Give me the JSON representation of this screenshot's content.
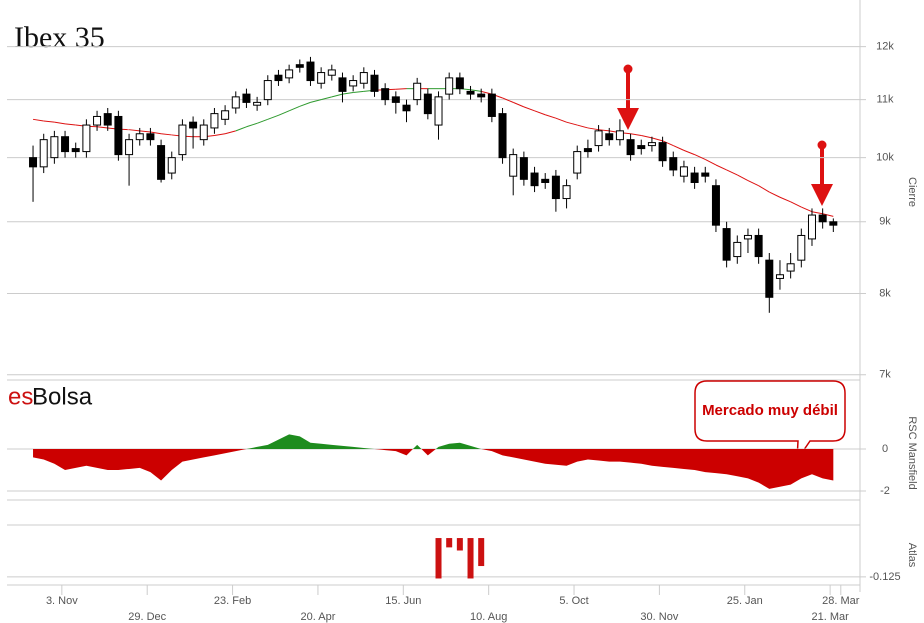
{
  "chart_data": {
    "type": "candlestick",
    "title": "Ibex 35",
    "logo": [
      "es",
      "Bolsa"
    ],
    "logo_colors": [
      "#cc1111",
      "#111111"
    ],
    "annotation": "Mercado muy débil",
    "annotation_color": "#cc0000",
    "y_label": "Cierre",
    "log_y": true,
    "xlim": [
      -2.44,
      77.5
    ],
    "xticks": [
      {
        "value": 2.7,
        "label": "3. Nov"
      },
      {
        "value": 10.7,
        "label": "29. Dec"
      },
      {
        "value": 18.7,
        "label": "23. Feb"
      },
      {
        "value": 26.7,
        "label": "20. Apr"
      },
      {
        "value": 34.7,
        "label": "15. Jun"
      },
      {
        "value": 42.7,
        "label": "10. Aug"
      },
      {
        "value": 50.7,
        "label": "5. Oct"
      },
      {
        "value": 58.7,
        "label": "30. Nov"
      },
      {
        "value": 66.7,
        "label": "25. Jan"
      },
      {
        "value": 74.7,
        "label": "21. Mar"
      },
      {
        "value": 75.7,
        "label": "28. Mar"
      }
    ],
    "ylim": [
      6940,
      12850
    ],
    "yticks": [
      {
        "value": 7000,
        "label": "7k"
      },
      {
        "value": 8000,
        "label": "8k"
      },
      {
        "value": 9000,
        "label": "9k"
      },
      {
        "value": 10000,
        "label": "10k"
      },
      {
        "value": 11000,
        "label": "11k"
      },
      {
        "value": 12000,
        "label": "12k"
      }
    ],
    "grid": true,
    "up_color": "#ffffff",
    "down_color": "#000000",
    "open": [
      10000,
      9850,
      10000,
      10350,
      10150,
      10100,
      10550,
      10750,
      10700,
      10050,
      10300,
      10400,
      10200,
      9750,
      10050,
      10600,
      10300,
      10500,
      10650,
      10850,
      11100,
      10900,
      11000,
      11450,
      11400,
      11650,
      11700,
      11300,
      11450,
      11400,
      11250,
      11300,
      11450,
      11200,
      11050,
      10900,
      11000,
      11100,
      10550,
      11100,
      11400,
      11150,
      11100,
      11100,
      10750,
      9700,
      10000,
      9750,
      9650,
      9700,
      9350,
      9750,
      10150,
      10200,
      10400,
      10300,
      10300,
      10200,
      10200,
      10250,
      10000,
      9700,
      9750,
      9750,
      9550,
      8900,
      8500,
      8750,
      8800,
      8450,
      8200,
      8300,
      8450,
      8750,
      9100,
      9000
    ],
    "high": [
      10200,
      10400,
      10450,
      10450,
      10250,
      10650,
      10800,
      10850,
      10800,
      10400,
      10500,
      10500,
      10300,
      10100,
      10650,
      10700,
      10650,
      10850,
      10900,
      11150,
      11200,
      11050,
      11450,
      11550,
      11650,
      11750,
      11800,
      11600,
      11650,
      11500,
      11450,
      11600,
      11550,
      11300,
      11150,
      11000,
      11400,
      11200,
      11150,
      11500,
      11500,
      11250,
      11200,
      11200,
      10850,
      10150,
      10100,
      9850,
      9750,
      9800,
      9650,
      10200,
      10300,
      10550,
      10500,
      10650,
      10400,
      10300,
      10350,
      10350,
      10100,
      9950,
      9850,
      9850,
      9650,
      9000,
      8800,
      8900,
      8900,
      8550,
      8450,
      8550,
      8900,
      9200,
      9200,
      9050
    ],
    "low": [
      9300,
      9750,
      9900,
      10000,
      10000,
      10000,
      10450,
      10450,
      9950,
      9550,
      10200,
      10200,
      9600,
      9650,
      9950,
      10150,
      10200,
      10400,
      10550,
      10750,
      10850,
      10800,
      10900,
      11250,
      11300,
      11500,
      11250,
      11200,
      11350,
      10950,
      11150,
      11200,
      11050,
      10900,
      10750,
      10600,
      10900,
      10650,
      10300,
      11000,
      11100,
      11000,
      10950,
      10600,
      9900,
      9400,
      9550,
      9450,
      9500,
      9150,
      9200,
      9650,
      10000,
      10100,
      10200,
      10200,
      9950,
      10050,
      10100,
      9850,
      9700,
      9600,
      9500,
      9600,
      8850,
      8350,
      8400,
      8550,
      8400,
      7750,
      8050,
      8200,
      8350,
      8650,
      8900,
      8850
    ],
    "close": [
      9850,
      10300,
      10350,
      10100,
      10100,
      10550,
      10700,
      10550,
      10050,
      10300,
      10400,
      10300,
      9650,
      10000,
      10550,
      10500,
      10550,
      10750,
      10800,
      11050,
      10950,
      10950,
      11350,
      11350,
      11550,
      11600,
      11350,
      11500,
      11550,
      11150,
      11350,
      11500,
      11150,
      11000,
      10950,
      10800,
      11300,
      10750,
      11050,
      11400,
      11200,
      11100,
      11050,
      10700,
      10000,
      10050,
      9650,
      9550,
      9600,
      9350,
      9550,
      10100,
      10100,
      10450,
      10300,
      10450,
      10050,
      10150,
      10250,
      9950,
      9800,
      9850,
      9600,
      9700,
      8950,
      8450,
      8700,
      8800,
      8500,
      7950,
      8250,
      8400,
      8800,
      9100,
      9000,
      8950
    ],
    "moving_average": {
      "color_up": "#2e9a2e",
      "color_down": "#dd1111",
      "values": [
        10650,
        10620,
        10600,
        10570,
        10550,
        10530,
        10520,
        10500,
        10480,
        10470,
        10450,
        10430,
        10400,
        10380,
        10360,
        10350,
        10350,
        10370,
        10400,
        10450,
        10520,
        10580,
        10650,
        10720,
        10800,
        10880,
        10950,
        11000,
        11050,
        11100,
        11130,
        11150,
        11170,
        11180,
        11190,
        11200,
        11200,
        11200,
        11200,
        11200,
        11200,
        11180,
        11150,
        11100,
        11030,
        10950,
        10870,
        10800,
        10730,
        10670,
        10600,
        10550,
        10500,
        10470,
        10450,
        10420,
        10400,
        10370,
        10330,
        10280,
        10200,
        10120,
        10050,
        9970,
        9880,
        9800,
        9720,
        9630,
        9550,
        9450,
        9370,
        9300,
        9220,
        9150,
        9120,
        9080
      ]
    },
    "rsc": {
      "type": "area",
      "y_label": "RSC Mansfield",
      "ylim": [
        -2.43,
        3.29
      ],
      "yticks": [
        0,
        -2
      ],
      "color_up": "#1e8c1e",
      "color_down": "#cc0000",
      "values": [
        -0.4,
        -0.5,
        -0.7,
        -1.0,
        -0.9,
        -0.8,
        -0.9,
        -1.0,
        -1.0,
        -0.95,
        -0.9,
        -1.1,
        -1.5,
        -1.0,
        -0.6,
        -0.5,
        -0.4,
        -0.3,
        -0.2,
        -0.1,
        0.0,
        0.1,
        0.2,
        0.45,
        0.7,
        0.6,
        0.3,
        0.25,
        0.2,
        0.15,
        0.1,
        0.05,
        0.0,
        -0.05,
        -0.1,
        -0.3,
        0.2,
        -0.3,
        0.1,
        0.25,
        0.3,
        0.15,
        0.0,
        -0.1,
        -0.3,
        -0.4,
        -0.5,
        -0.6,
        -0.7,
        -0.75,
        -0.8,
        -0.6,
        -0.5,
        -0.55,
        -0.6,
        -0.6,
        -0.65,
        -0.7,
        -0.8,
        -0.85,
        -0.9,
        -0.95,
        -1.0,
        -1.1,
        -1.15,
        -1.2,
        -1.3,
        -1.4,
        -1.6,
        -1.9,
        -1.8,
        -1.7,
        -1.4,
        -1.2,
        -1.4,
        -1.5
      ]
    },
    "atlas": {
      "type": "bar",
      "y_label": "Atlas",
      "ylim": [
        -0.151,
        0.042
      ],
      "yticks": [
        -0.125
      ],
      "color": "#cc1111",
      "x": [
        38,
        39,
        40,
        41,
        42
      ],
      "values": [
        -0.13,
        -0.03,
        -0.04,
        -0.13,
        -0.09
      ]
    }
  }
}
